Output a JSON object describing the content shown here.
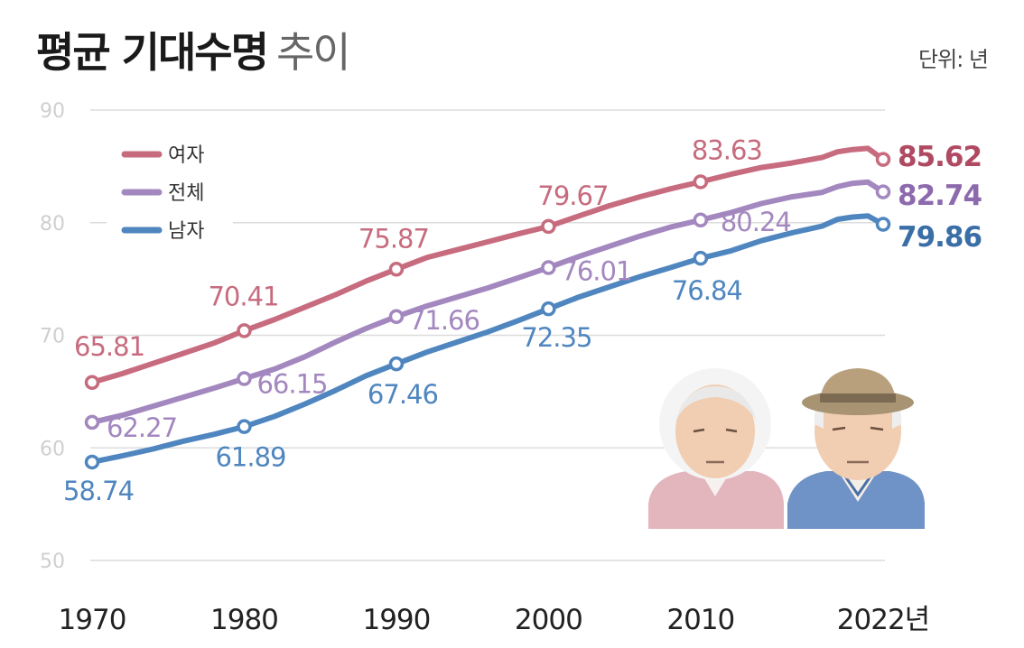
{
  "title_bold": "평균 기대수명",
  "title_light": "추이",
  "unit": "단위: 년",
  "colors": {
    "women": "#c76b7e",
    "total": "#a387bf",
    "men": "#4f86bf",
    "grid": "#dcdcdc",
    "women_end": "#b04a63",
    "total_end": "#8d6aad",
    "men_end": "#3a6ea6"
  },
  "chart_data": {
    "type": "line",
    "title": "평균 기대수명 추이",
    "unit": "단위: 년",
    "xlabel": "",
    "ylabel": "",
    "ylim": [
      50,
      90
    ],
    "yticks": [
      90,
      80,
      70,
      60,
      50
    ],
    "xticks": [
      "1970",
      "1980",
      "1990",
      "2000",
      "2010",
      "2022년"
    ],
    "xlim": [
      1970,
      2022
    ],
    "grid": true,
    "legend_position": "top-left",
    "series": [
      {
        "name": "여자",
        "key": "women",
        "points": [
          [
            1970,
            65.81
          ],
          [
            1980,
            70.41
          ],
          [
            1990,
            75.87
          ],
          [
            2000,
            79.67
          ],
          [
            2010,
            83.63
          ],
          [
            2022,
            85.62
          ]
        ],
        "trend": [
          [
            1970,
            65.81
          ],
          [
            1972,
            66.6
          ],
          [
            1974,
            67.5
          ],
          [
            1976,
            68.4
          ],
          [
            1978,
            69.3
          ],
          [
            1980,
            70.41
          ],
          [
            1982,
            71.4
          ],
          [
            1984,
            72.5
          ],
          [
            1986,
            73.6
          ],
          [
            1988,
            74.8
          ],
          [
            1990,
            75.87
          ],
          [
            1992,
            76.9
          ],
          [
            1994,
            77.6
          ],
          [
            1996,
            78.3
          ],
          [
            1998,
            79.0
          ],
          [
            2000,
            79.67
          ],
          [
            2002,
            80.6
          ],
          [
            2004,
            81.5
          ],
          [
            2006,
            82.3
          ],
          [
            2008,
            83.0
          ],
          [
            2010,
            83.63
          ],
          [
            2012,
            84.3
          ],
          [
            2014,
            84.9
          ],
          [
            2016,
            85.3
          ],
          [
            2018,
            85.8
          ],
          [
            2019,
            86.3
          ],
          [
            2020,
            86.5
          ],
          [
            2021,
            86.6
          ],
          [
            2022,
            85.62
          ]
        ],
        "labels": [
          "65.81",
          "70.41",
          "75.87",
          "79.67",
          "83.63",
          "85.62"
        ]
      },
      {
        "name": "전체",
        "key": "total",
        "points": [
          [
            1970,
            62.27
          ],
          [
            1980,
            66.15
          ],
          [
            1990,
            71.66
          ],
          [
            2000,
            76.01
          ],
          [
            2010,
            80.24
          ],
          [
            2022,
            82.74
          ]
        ],
        "trend": [
          [
            1970,
            62.27
          ],
          [
            1972,
            62.9
          ],
          [
            1974,
            63.7
          ],
          [
            1976,
            64.5
          ],
          [
            1978,
            65.3
          ],
          [
            1980,
            66.15
          ],
          [
            1982,
            67.0
          ],
          [
            1984,
            68.1
          ],
          [
            1986,
            69.4
          ],
          [
            1988,
            70.6
          ],
          [
            1990,
            71.66
          ],
          [
            1992,
            72.6
          ],
          [
            1994,
            73.4
          ],
          [
            1996,
            74.2
          ],
          [
            1998,
            75.1
          ],
          [
            2000,
            76.01
          ],
          [
            2002,
            77.0
          ],
          [
            2004,
            77.9
          ],
          [
            2006,
            78.8
          ],
          [
            2008,
            79.6
          ],
          [
            2010,
            80.24
          ],
          [
            2012,
            80.9
          ],
          [
            2014,
            81.7
          ],
          [
            2016,
            82.3
          ],
          [
            2018,
            82.7
          ],
          [
            2019,
            83.2
          ],
          [
            2020,
            83.5
          ],
          [
            2021,
            83.6
          ],
          [
            2022,
            82.74
          ]
        ],
        "labels": [
          "62.27",
          "66.15",
          "71.66",
          "76.01",
          "80.24",
          "82.74"
        ]
      },
      {
        "name": "남자",
        "key": "men",
        "points": [
          [
            1970,
            58.74
          ],
          [
            1980,
            61.89
          ],
          [
            1990,
            67.46
          ],
          [
            2000,
            72.35
          ],
          [
            2010,
            76.84
          ],
          [
            2022,
            79.86
          ]
        ],
        "trend": [
          [
            1970,
            58.74
          ],
          [
            1972,
            59.3
          ],
          [
            1974,
            59.9
          ],
          [
            1976,
            60.6
          ],
          [
            1978,
            61.2
          ],
          [
            1980,
            61.89
          ],
          [
            1982,
            62.8
          ],
          [
            1984,
            63.9
          ],
          [
            1986,
            65.1
          ],
          [
            1988,
            66.4
          ],
          [
            1990,
            67.46
          ],
          [
            1992,
            68.5
          ],
          [
            1994,
            69.4
          ],
          [
            1996,
            70.3
          ],
          [
            1998,
            71.3
          ],
          [
            2000,
            72.35
          ],
          [
            2002,
            73.4
          ],
          [
            2004,
            74.3
          ],
          [
            2006,
            75.2
          ],
          [
            2008,
            76.0
          ],
          [
            2010,
            76.84
          ],
          [
            2012,
            77.5
          ],
          [
            2014,
            78.4
          ],
          [
            2016,
            79.1
          ],
          [
            2018,
            79.7
          ],
          [
            2019,
            80.3
          ],
          [
            2020,
            80.5
          ],
          [
            2021,
            80.6
          ],
          [
            2022,
            79.86
          ]
        ],
        "labels": [
          "58.74",
          "61.89",
          "67.46",
          "72.35",
          "76.84",
          "79.86"
        ]
      }
    ]
  }
}
